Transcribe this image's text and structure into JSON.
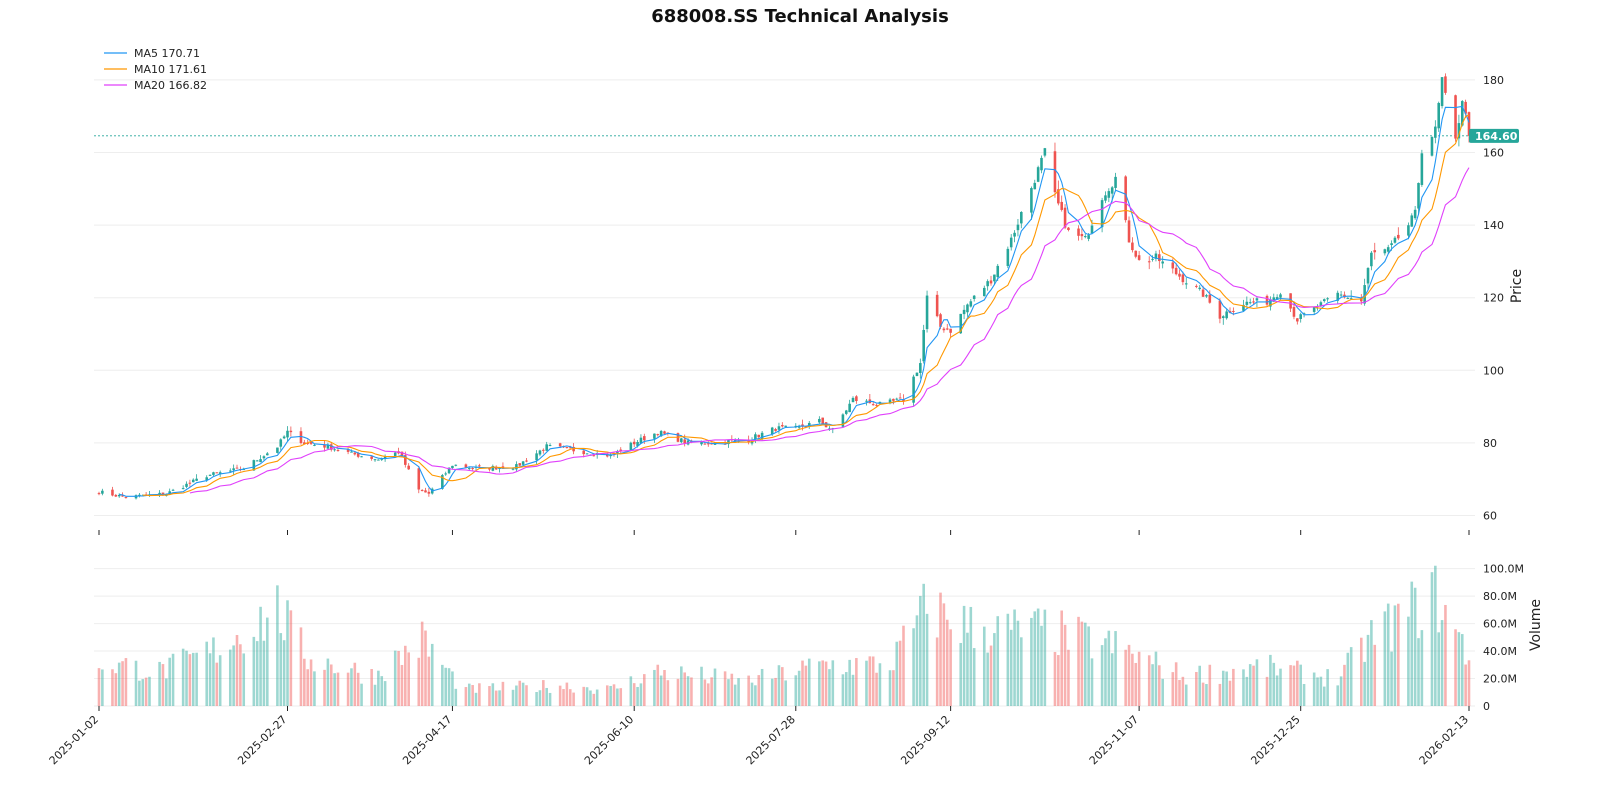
{
  "chart_data": {
    "type": "candlestick",
    "title": "688008.SS Technical Analysis",
    "ylabel": "Price",
    "ylabel_volume": "Volume",
    "ylim": [
      56,
      191
    ],
    "volume_ylim": [
      0,
      115000000
    ],
    "yticks": [
      60,
      80,
      100,
      120,
      140,
      160,
      180
    ],
    "volume_ticks": [
      {
        "value": 0,
        "label": "0"
      },
      {
        "value": 20000000,
        "label": "20.0M"
      },
      {
        "value": 40000000,
        "label": "40.0M"
      },
      {
        "value": 60000000,
        "label": "60.0M"
      },
      {
        "value": 80000000,
        "label": "80.0M"
      },
      {
        "value": 100000000,
        "label": "100.0M"
      }
    ],
    "x_ticks": [
      {
        "date": "2025-01-02",
        "label": "2025-01-02"
      },
      {
        "date": "2025-02-27",
        "label": "2025-02-27"
      },
      {
        "date": "2025-04-17",
        "label": "2025-04-17"
      },
      {
        "date": "2025-06-10",
        "label": "2025-06-10"
      },
      {
        "date": "2025-07-28",
        "label": "2025-07-28"
      },
      {
        "date": "2025-09-12",
        "label": "2025-09-12"
      },
      {
        "date": "2025-11-07",
        "label": "2025-11-07"
      },
      {
        "date": "2025-12-25",
        "label": "2025-12-25"
      },
      {
        "date": "2026-02-13",
        "label": "2026-02-13"
      }
    ],
    "last_price": 164.6,
    "last_price_label": "164.60",
    "grid": true,
    "legend_position": "top-left",
    "legend": [
      {
        "name": "MA5 170.71",
        "color": "#2196f3"
      },
      {
        "name": "MA10 171.61",
        "color": "#ff9800"
      },
      {
        "name": "MA20 166.82",
        "color": "#e040fb"
      }
    ],
    "colors": {
      "up": "#26a69a",
      "down": "#ef5350",
      "price_line": "#26a69a",
      "grid": "#eeeeee"
    },
    "price_anchors": [
      [
        "2025-01-02",
        66.5
      ],
      [
        "2025-01-10",
        65.0
      ],
      [
        "2025-01-15",
        65.5
      ],
      [
        "2025-01-22",
        66.0
      ],
      [
        "2025-02-03",
        71.0
      ],
      [
        "2025-02-14",
        73.0
      ],
      [
        "2025-02-24",
        79.0
      ],
      [
        "2025-02-27",
        83.0
      ],
      [
        "2025-03-04",
        80.0
      ],
      [
        "2025-03-11",
        79.0
      ],
      [
        "2025-03-18",
        77.0
      ],
      [
        "2025-03-26",
        75.5
      ],
      [
        "2025-04-01",
        77.5
      ],
      [
        "2025-04-07",
        67.0
      ],
      [
        "2025-04-10",
        66.0
      ],
      [
        "2025-04-17",
        74.0
      ],
      [
        "2025-04-24",
        73.0
      ],
      [
        "2025-05-06",
        73.5
      ],
      [
        "2025-05-15",
        79.0
      ],
      [
        "2025-05-23",
        78.0
      ],
      [
        "2025-06-03",
        76.5
      ],
      [
        "2025-06-10",
        80.0
      ],
      [
        "2025-06-17",
        83.0
      ],
      [
        "2025-06-26",
        80.0
      ],
      [
        "2025-07-04",
        80.0
      ],
      [
        "2025-07-14",
        81.0
      ],
      [
        "2025-07-22",
        84.0
      ],
      [
        "2025-07-28",
        84.0
      ],
      [
        "2025-08-04",
        86.0
      ],
      [
        "2025-08-08",
        83.5
      ],
      [
        "2025-08-14",
        92.0
      ],
      [
        "2025-08-22",
        90.5
      ],
      [
        "2025-08-29",
        92.0
      ],
      [
        "2025-09-03",
        102.0
      ],
      [
        "2025-09-05",
        120.0
      ],
      [
        "2025-09-09",
        112.0
      ],
      [
        "2025-09-12",
        111.0
      ],
      [
        "2025-09-17",
        118.0
      ],
      [
        "2025-09-24",
        125.0
      ],
      [
        "2025-09-30",
        136.0
      ],
      [
        "2025-10-10",
        160.0
      ],
      [
        "2025-10-13",
        148.0
      ],
      [
        "2025-10-17",
        138.0
      ],
      [
        "2025-10-22",
        136.0
      ],
      [
        "2025-10-27",
        148.0
      ],
      [
        "2025-10-31",
        153.0
      ],
      [
        "2025-11-04",
        136.0
      ],
      [
        "2025-11-07",
        130.0
      ],
      [
        "2025-11-12",
        131.0
      ],
      [
        "2025-11-19",
        126.0
      ],
      [
        "2025-11-26",
        121.0
      ],
      [
        "2025-12-01",
        115.0
      ],
      [
        "2025-12-08",
        118.5
      ],
      [
        "2025-12-15",
        119.0
      ],
      [
        "2025-12-19",
        122.0
      ],
      [
        "2025-12-24",
        114.0
      ],
      [
        "2025-12-31",
        118.0
      ],
      [
        "2026-01-05",
        121.0
      ],
      [
        "2026-01-12",
        119.0
      ],
      [
        "2026-01-15",
        132.0
      ],
      [
        "2026-01-20",
        133.0
      ],
      [
        "2026-01-26",
        140.0
      ],
      [
        "2026-01-28",
        143.0
      ],
      [
        "2026-01-30",
        161.0
      ],
      [
        "2026-02-03",
        166.0
      ],
      [
        "2026-02-05",
        180.0
      ],
      [
        "2026-02-06",
        175.0
      ],
      [
        "2026-02-09",
        163.0
      ],
      [
        "2026-02-11",
        175.0
      ],
      [
        "2026-02-13",
        164.6
      ]
    ],
    "volume_anchors": [
      [
        "2025-01-02",
        32000000
      ],
      [
        "2025-01-20",
        25000000
      ],
      [
        "2025-02-05",
        40000000
      ],
      [
        "2025-02-24",
        70000000
      ],
      [
        "2025-03-05",
        35000000
      ],
      [
        "2025-03-25",
        22000000
      ],
      [
        "2025-04-08",
        48000000
      ],
      [
        "2025-04-20",
        12000000
      ],
      [
        "2025-05-20",
        15000000
      ],
      [
        "2025-06-03",
        12000000
      ],
      [
        "2025-06-17",
        25000000
      ],
      [
        "2025-07-14",
        18000000
      ],
      [
        "2025-08-05",
        30000000
      ],
      [
        "2025-08-25",
        30000000
      ],
      [
        "2025-09-05",
        72000000
      ],
      [
        "2025-09-20",
        55000000
      ],
      [
        "2025-10-10",
        55000000
      ],
      [
        "2025-11-01",
        42000000
      ],
      [
        "2025-11-20",
        22000000
      ],
      [
        "2025-12-15",
        28000000
      ],
      [
        "2026-01-05",
        20000000
      ],
      [
        "2026-01-15",
        50000000
      ],
      [
        "2026-02-03",
        80000000
      ],
      [
        "2026-02-13",
        35000000
      ]
    ]
  }
}
